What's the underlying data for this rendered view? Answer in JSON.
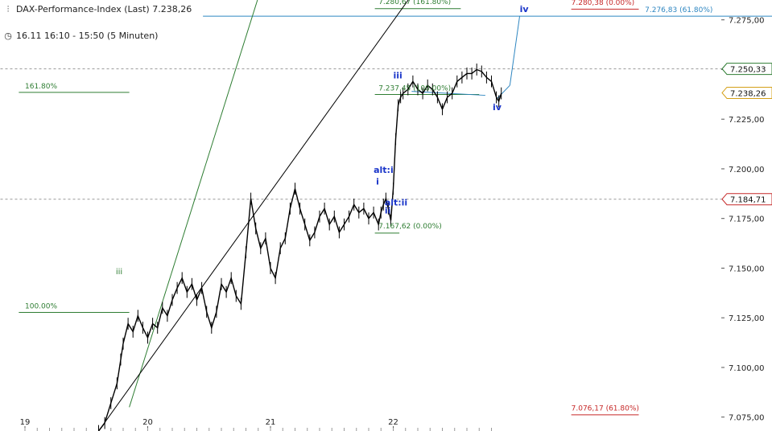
{
  "header": {
    "title": "DAX-Performance-Index (Last) 7.238,26",
    "subtitle": "16.11 16:10 - 15:50 (5 Minuten)",
    "title_icon": "candlestick-icon",
    "subtitle_icon": "clock-icon"
  },
  "chart_data": {
    "type": "line",
    "title": "DAX-Performance-Index (Last) 7.238,26",
    "subtitle": "16.11 16:10 - 15:50 (5 Minuten)",
    "ylim": [
      7068,
      7285
    ],
    "y_ticks": [
      {
        "value": 7075,
        "label": "7.075,00"
      },
      {
        "value": 7100,
        "label": "7.100,00"
      },
      {
        "value": 7125,
        "label": "7.125,00"
      },
      {
        "value": 7150,
        "label": "7.150,00"
      },
      {
        "value": 7175,
        "label": "7.175,00"
      },
      {
        "value": 7200,
        "label": "7.200,00"
      },
      {
        "value": 7225,
        "label": "7.225,00"
      },
      {
        "value": 7250,
        "label": "7.250,00"
      },
      {
        "value": 7275,
        "label": "7.275,00"
      }
    ],
    "x_ticks": [
      "19",
      "20",
      "21",
      "22"
    ],
    "price_tags": [
      {
        "value": 7250.33,
        "label": "7.250,33",
        "color": "#2e7d32"
      },
      {
        "value": 7238.26,
        "label": "7.238,26",
        "color": "#d4a017"
      },
      {
        "value": 7184.71,
        "label": "7.184,71",
        "color": "#c62828"
      }
    ],
    "series": [
      {
        "color": "#000000",
        "points": [
          [
            19.6,
            7068
          ],
          [
            19.65,
            7072
          ],
          [
            19.7,
            7082
          ],
          [
            19.75,
            7092
          ],
          [
            19.78,
            7104
          ],
          [
            19.8,
            7112
          ],
          [
            19.84,
            7122
          ],
          [
            19.88,
            7118
          ],
          [
            19.92,
            7126
          ],
          [
            19.96,
            7120
          ],
          [
            20.0,
            7115
          ],
          [
            20.04,
            7122
          ],
          [
            20.08,
            7120
          ],
          [
            20.12,
            7130
          ],
          [
            20.16,
            7126
          ],
          [
            20.2,
            7134
          ],
          [
            20.24,
            7140
          ],
          [
            20.28,
            7145
          ],
          [
            20.32,
            7138
          ],
          [
            20.36,
            7142
          ],
          [
            20.4,
            7134
          ],
          [
            20.44,
            7140
          ],
          [
            20.48,
            7128
          ],
          [
            20.52,
            7120
          ],
          [
            20.56,
            7128
          ],
          [
            20.6,
            7142
          ],
          [
            20.64,
            7138
          ],
          [
            20.68,
            7145
          ],
          [
            20.72,
            7136
          ],
          [
            20.76,
            7132
          ],
          [
            20.8,
            7158
          ],
          [
            20.84,
            7185
          ],
          [
            20.88,
            7170
          ],
          [
            20.92,
            7160
          ],
          [
            20.96,
            7165
          ],
          [
            21.0,
            7150
          ],
          [
            21.04,
            7145
          ],
          [
            21.08,
            7160
          ],
          [
            21.12,
            7165
          ],
          [
            21.16,
            7180
          ],
          [
            21.2,
            7190
          ],
          [
            21.24,
            7180
          ],
          [
            21.28,
            7172
          ],
          [
            21.32,
            7164
          ],
          [
            21.36,
            7168
          ],
          [
            21.4,
            7176
          ],
          [
            21.44,
            7180
          ],
          [
            21.48,
            7172
          ],
          [
            21.52,
            7176
          ],
          [
            21.56,
            7168
          ],
          [
            21.6,
            7172
          ],
          [
            21.64,
            7176
          ],
          [
            21.68,
            7182
          ],
          [
            21.72,
            7178
          ],
          [
            21.76,
            7180
          ],
          [
            21.8,
            7175
          ],
          [
            21.84,
            7178
          ],
          [
            21.88,
            7172
          ],
          [
            21.9,
            7178
          ],
          [
            21.92,
            7182
          ],
          [
            21.94,
            7185
          ],
          [
            21.96,
            7180
          ],
          [
            21.98,
            7174
          ],
          [
            22.0,
            7190
          ],
          [
            22.02,
            7215
          ],
          [
            22.04,
            7232
          ],
          [
            22.06,
            7236
          ],
          [
            22.08,
            7238
          ],
          [
            22.12,
            7240
          ],
          [
            22.16,
            7244
          ],
          [
            22.2,
            7240
          ],
          [
            22.24,
            7238
          ],
          [
            22.28,
            7242
          ],
          [
            22.32,
            7240
          ],
          [
            22.36,
            7236
          ],
          [
            22.4,
            7230
          ],
          [
            22.44,
            7236
          ],
          [
            22.48,
            7238
          ],
          [
            22.52,
            7244
          ],
          [
            22.56,
            7246
          ],
          [
            22.6,
            7248
          ],
          [
            22.64,
            7248
          ],
          [
            22.68,
            7250
          ],
          [
            22.72,
            7249
          ],
          [
            22.76,
            7246
          ],
          [
            22.8,
            7244
          ],
          [
            22.84,
            7236
          ],
          [
            22.86,
            7234
          ],
          [
            22.88,
            7238
          ]
        ]
      }
    ],
    "h_lines": [
      {
        "value": 7276.83,
        "color": "#2e86c1",
        "style": "solid",
        "x_from": 20.45,
        "x_to": 25.85
      },
      {
        "value": 7250.33,
        "color": "#999999",
        "style": "dashed",
        "x_from": 18.8,
        "x_to": 25.85
      },
      {
        "value": 7184.71,
        "color": "#999999",
        "style": "dashed",
        "x_from": 18.8,
        "x_to": 25.85
      },
      {
        "value": 7237.45,
        "color": "#2e7d32",
        "style": "solid",
        "x_from": 21.85,
        "x_to": 22.7
      },
      {
        "value": 7167.62,
        "color": "#2e7d32",
        "style": "solid",
        "x_from": 21.85,
        "x_to": 22.05
      },
      {
        "value": 7280.67,
        "color": "#2e7d32",
        "style": "solid",
        "x_from": 21.85,
        "x_to": 22.55
      },
      {
        "value": 7238.5,
        "color": "#2e7d32",
        "style": "solid",
        "x_from": 18.95,
        "x_to": 19.85
      },
      {
        "value": 7127.7,
        "color": "#2e7d32",
        "style": "solid",
        "x_from": 18.95,
        "x_to": 19.85
      },
      {
        "value": 7280.38,
        "color": "#c62828",
        "style": "solid",
        "x_from": 23.45,
        "x_to": 24.0
      },
      {
        "value": 7076.17,
        "color": "#c62828",
        "style": "solid",
        "x_from": 23.45,
        "x_to": 24.0
      }
    ],
    "trend_lines": [
      {
        "color": "#2e7d32",
        "from": [
          19.85,
          7080
        ],
        "to": [
          20.95,
          7296
        ]
      },
      {
        "color": "#000000",
        "from": [
          19.6,
          7068
        ],
        "to": [
          22.25,
          7296
        ]
      },
      {
        "color": "#2e86c1",
        "from": [
          22.15,
          7239
        ],
        "to": [
          22.75,
          7237
        ]
      },
      {
        "color": "#2e86c1",
        "from": [
          22.84,
          7235
        ],
        "to": [
          22.95,
          7242
        ]
      },
      {
        "color": "#2e86c1",
        "from": [
          22.95,
          7242
        ],
        "to": [
          23.03,
          7277
        ]
      }
    ],
    "annotations": [
      {
        "text": "7.280,67 (161.80%)",
        "x": 21.88,
        "y": 7283.0,
        "color": "#2e7d32",
        "size": 9
      },
      {
        "text": "7.237,45 (100.00%)",
        "x": 21.88,
        "y": 7239.5,
        "color": "#2e7d32",
        "size": 9
      },
      {
        "text": "7.167,62 (0.00%)",
        "x": 21.88,
        "y": 7170.0,
        "color": "#2e7d32",
        "size": 9
      },
      {
        "text": "161.80%",
        "x": 19.0,
        "y": 7240.5,
        "color": "#2e7d32",
        "size": 9
      },
      {
        "text": "100.00%",
        "x": 19.0,
        "y": 7129.7,
        "color": "#2e7d32",
        "size": 9
      },
      {
        "text": "7.280,38 (0.00%)",
        "x": 23.45,
        "y": 7282.5,
        "color": "#c62828",
        "size": 9
      },
      {
        "text": "7.076,17 (61.80%)",
        "x": 23.45,
        "y": 7078.3,
        "color": "#c62828",
        "size": 9
      },
      {
        "text": "7.276,83 (61.80%)",
        "x": 24.05,
        "y": 7279.0,
        "color": "#2e86c1",
        "size": 9
      },
      {
        "text": "iii",
        "x": 19.74,
        "y": 7147.0,
        "color": "#2e7d32",
        "size": 10
      },
      {
        "text": "iii",
        "x": 22.0,
        "y": 7245.5,
        "color": "#1a35c9",
        "size": 11,
        "weight": "bold"
      },
      {
        "text": "alt:i",
        "x": 21.84,
        "y": 7198.0,
        "color": "#1a35c9",
        "size": 11,
        "weight": "bold"
      },
      {
        "text": "i",
        "x": 21.86,
        "y": 7192.0,
        "color": "#1a35c9",
        "size": 11,
        "weight": "bold"
      },
      {
        "text": "alt:ii",
        "x": 21.93,
        "y": 7181.5,
        "color": "#1a35c9",
        "size": 11,
        "weight": "bold"
      },
      {
        "text": "ii",
        "x": 21.93,
        "y": 7177.5,
        "color": "#1a35c9",
        "size": 11,
        "weight": "bold"
      },
      {
        "text": "iv",
        "x": 22.81,
        "y": 7229.5,
        "color": "#1a35c9",
        "size": 11,
        "weight": "bold"
      },
      {
        "text": "iv",
        "x": 23.03,
        "y": 7279.0,
        "color": "#1a35c9",
        "size": 11,
        "weight": "bold"
      }
    ]
  }
}
